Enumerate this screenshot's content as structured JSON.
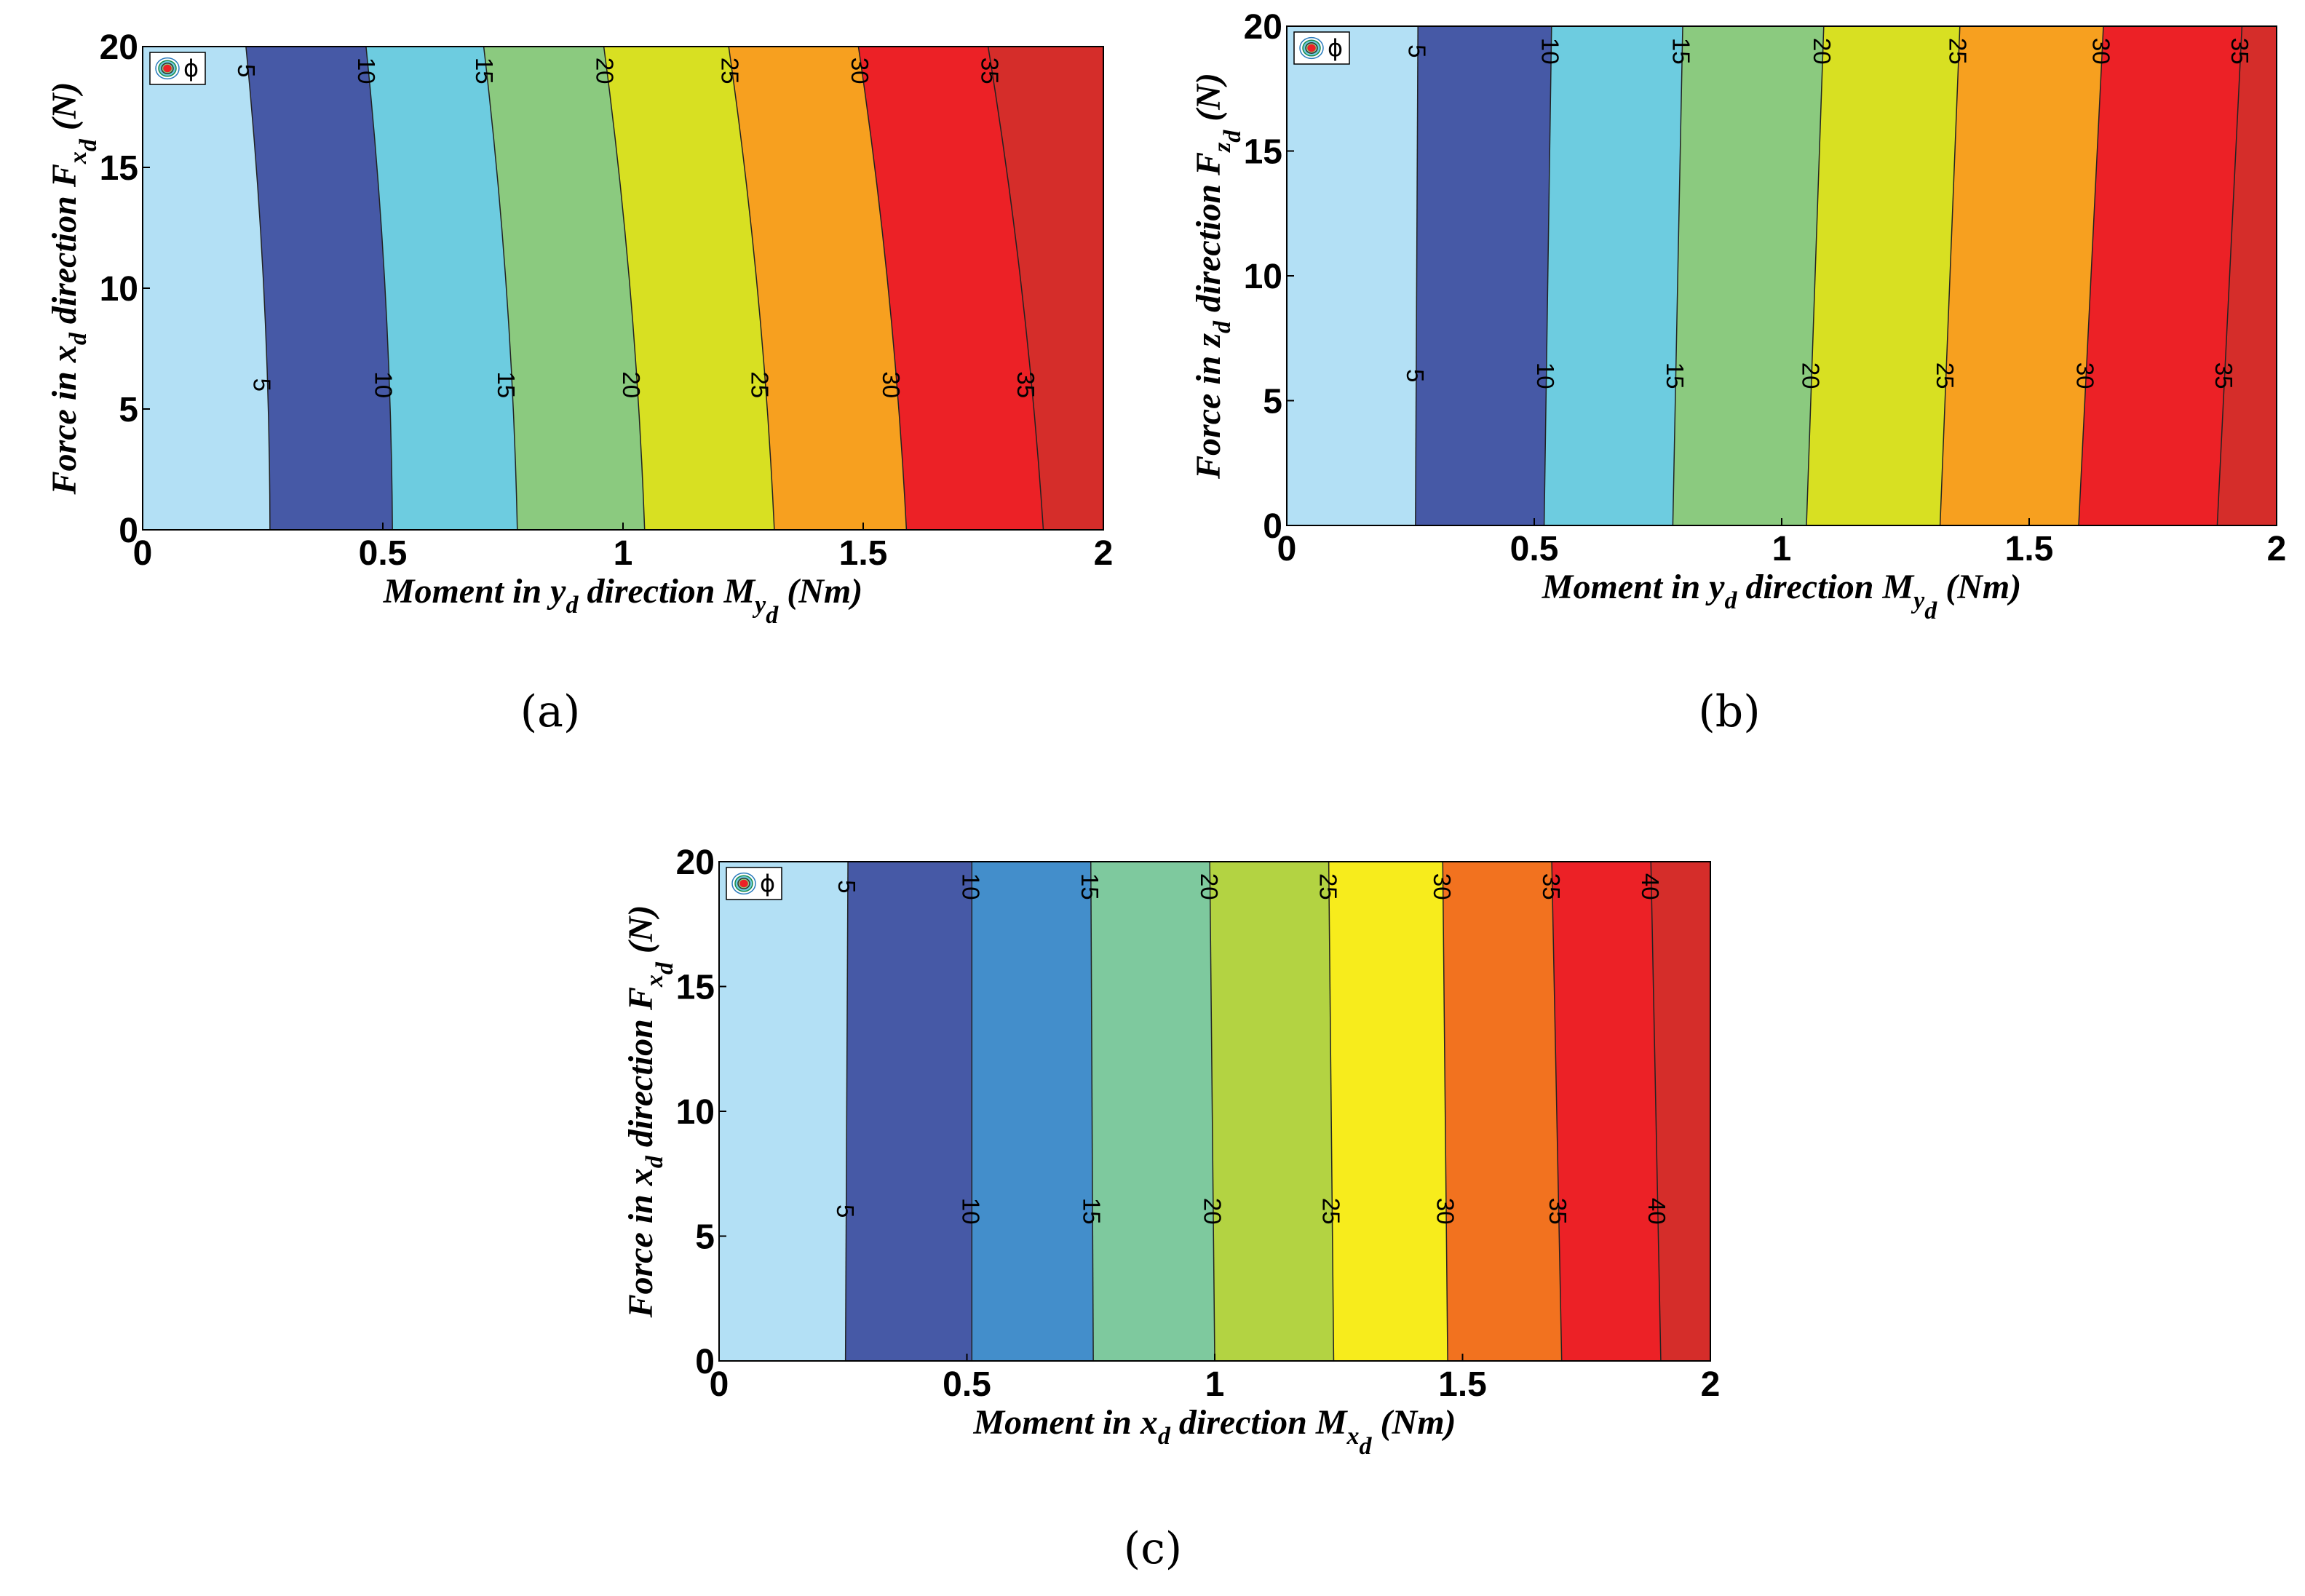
{
  "chart_data": [
    {
      "type": "contour",
      "panel_label": "(a)",
      "xlabel_parts": {
        "pre": "Moment in ",
        "var": "y",
        "sub": "d",
        "mid": " direction M",
        "sub2": "y",
        "sub3": "d",
        "post": " (Nm)"
      },
      "ylabel_parts": {
        "pre": "Force in ",
        "var": "x",
        "sub": "d",
        "mid": " direction F",
        "sub2": "x",
        "sub3": "d",
        "post": " (N)"
      },
      "xlim": [
        0,
        2
      ],
      "ylim": [
        0,
        20
      ],
      "xticks": [
        "0",
        "0.5",
        "1",
        "1.5",
        "2"
      ],
      "yticks": [
        "0",
        "5",
        "10",
        "15",
        "20"
      ],
      "legend": "ϕ",
      "levels": [
        5,
        10,
        15,
        20,
        25,
        30,
        35
      ],
      "contour_x_at_F0": [
        0.265,
        0.52,
        0.78,
        1.045,
        1.315,
        1.59,
        1.875
      ],
      "contour_x_at_F20": [
        0.215,
        0.465,
        0.71,
        0.96,
        1.22,
        1.49,
        1.76
      ],
      "label_F": [
        6,
        19
      ],
      "colors": [
        "#b3e0f5",
        "#4659a6",
        "#6dcce0",
        "#8bca7f",
        "#d8e022",
        "#f7a01f",
        "#ec2126",
        "#d52d2a"
      ]
    },
    {
      "type": "contour",
      "panel_label": "(b)",
      "xlabel_parts": {
        "pre": "Moment in ",
        "var": "y",
        "sub": "d",
        "mid": " direction M",
        "sub2": "y",
        "sub3": "d",
        "post": " (Nm)"
      },
      "ylabel_parts": {
        "pre": "Force in ",
        "var": "z",
        "sub": "d",
        "mid": " direction F",
        "sub2": "z",
        "sub3": "d",
        "post": " (N)"
      },
      "xlim": [
        0,
        2
      ],
      "ylim": [
        0,
        20
      ],
      "xticks": [
        "0",
        "0.5",
        "1",
        "1.5",
        "2"
      ],
      "yticks": [
        "0",
        "5",
        "10",
        "15",
        "20"
      ],
      "legend": "ϕ",
      "levels": [
        5,
        10,
        15,
        20,
        25,
        30,
        35
      ],
      "contour_x_at_F0": [
        0.26,
        0.52,
        0.78,
        1.05,
        1.32,
        1.6,
        1.88
      ],
      "contour_x_at_F20": [
        0.265,
        0.535,
        0.8,
        1.085,
        1.36,
        1.65,
        1.93
      ],
      "label_F": [
        6,
        19
      ],
      "colors": [
        "#b3e0f5",
        "#4659a6",
        "#6dcce0",
        "#8bca7f",
        "#d8e022",
        "#f7a01f",
        "#ec2126",
        "#d52d2a"
      ]
    },
    {
      "type": "contour",
      "panel_label": "(c)",
      "xlabel_parts": {
        "pre": "Moment in ",
        "var": "x",
        "sub": "d",
        "mid": " direction M",
        "sub2": "x",
        "sub3": "d",
        "post": " (Nm)"
      },
      "ylabel_parts": {
        "pre": "Force in ",
        "var": "x",
        "sub": "d",
        "mid": " direction F",
        "sub2": "x",
        "sub3": "d",
        "post": " (N)"
      },
      "xlim": [
        0,
        2
      ],
      "ylim": [
        0,
        20
      ],
      "xticks": [
        "0",
        "0.5",
        "1",
        "1.5",
        "2"
      ],
      "yticks": [
        "0",
        "5",
        "10",
        "15",
        "20"
      ],
      "legend": "ϕ",
      "levels": [
        5,
        10,
        15,
        20,
        25,
        30,
        35,
        40
      ],
      "contour_x_at_F0": [
        0.255,
        0.51,
        0.755,
        1.0,
        1.24,
        1.47,
        1.7,
        1.9
      ],
      "contour_x_at_F20": [
        0.26,
        0.51,
        0.75,
        0.99,
        1.23,
        1.46,
        1.68,
        1.88
      ],
      "label_F": [
        6,
        19
      ],
      "colors": [
        "#b3e0f5",
        "#4659a6",
        "#438ecb",
        "#7ec99e",
        "#b3d342",
        "#f7ec1c",
        "#f2721f",
        "#ec2126",
        "#d52d2a"
      ]
    }
  ]
}
